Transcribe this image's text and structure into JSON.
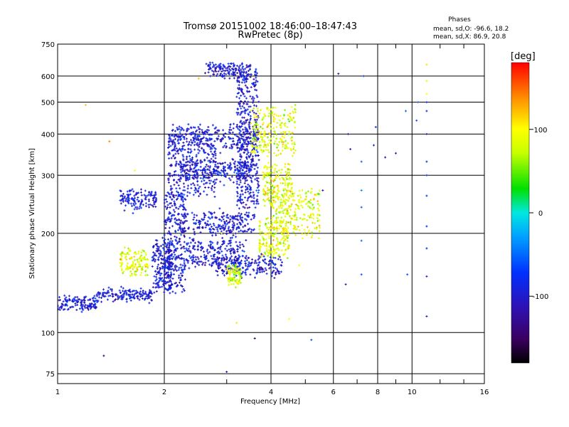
{
  "chart_data": {
    "type": "scatter",
    "title": "Tromsø 20151002 18:46:00–18:47:43",
    "subtitle": "RwPretec (8p)",
    "xlabel": "Frequency [MHz]",
    "ylabel": "Stationary phase Virtual Height [km]",
    "xscale": "log",
    "yscale": "log",
    "xlim": [
      1,
      16
    ],
    "ylim": [
      70,
      750
    ],
    "x_ticks": [
      1,
      2,
      4,
      6,
      8,
      10,
      16
    ],
    "x_minor_ticks": [
      3,
      5,
      7,
      9,
      12,
      14
    ],
    "y_ticks": [
      75,
      100,
      200,
      300,
      400,
      500,
      600,
      750
    ],
    "grid": true,
    "legend": {
      "heading": "Phases",
      "lines": [
        "mean, sd,O: -96.6, 18.2",
        "mean, sd,X:  86.9, 20.8"
      ],
      "position": "top-right"
    },
    "colorbar": {
      "label": "[deg]",
      "range": [
        -180,
        180
      ],
      "ticks": [
        100,
        0,
        -100
      ],
      "colormap": "rainbow (black-purple-blue-cyan-green-yellow-red)"
    },
    "series": [
      {
        "mode": "O",
        "phase_mean": -96.6,
        "phase_sd": 18.2,
        "traces": [
          {
            "f": [
              1.0,
              1.3
            ],
            "h": [
              118,
              128
            ],
            "s": 0.012
          },
          {
            "f": [
              1.3,
              1.85
            ],
            "h": [
              126,
              134
            ],
            "s": 0.012
          },
          {
            "f": [
              1.85,
              2.1
            ],
            "h": [
              134,
              190
            ],
            "s": 0.02
          },
          {
            "f": [
              2.0,
              2.3
            ],
            "h": [
              135,
              265
            ],
            "s": 0.02
          },
          {
            "f": [
              2.05,
              2.8
            ],
            "h": [
              260,
              400
            ],
            "s": 0.02
          },
          {
            "f": [
              2.05,
              3.7
            ],
            "h": [
              360,
              420
            ],
            "s": 0.018
          },
          {
            "f": [
              2.6,
              3.5
            ],
            "h": [
              600,
              650
            ],
            "s": 0.012
          },
          {
            "f": [
              3.2,
              3.7
            ],
            "h": [
              240,
              620
            ],
            "s": 0.02
          },
          {
            "f": [
              2.2,
              3.6
            ],
            "h": [
              290,
              330
            ],
            "s": 0.02
          },
          {
            "f": [
              2.2,
              3.6
            ],
            "h": [
              200,
              230
            ],
            "s": 0.02
          },
          {
            "f": [
              2.3,
              3.4
            ],
            "h": [
              160,
              190
            ],
            "s": 0.02
          },
          {
            "f": [
              2.8,
              4.3
            ],
            "h": [
              150,
              170
            ],
            "s": 0.015
          },
          {
            "f": [
              1.5,
              1.9
            ],
            "h": [
              240,
              270
            ],
            "s": 0.02
          }
        ]
      },
      {
        "mode": "X",
        "phase_mean": 86.9,
        "phase_sd": 20.8,
        "traces": [
          {
            "f": [
              3.7,
              4.5
            ],
            "h": [
              170,
              220
            ],
            "s": 0.015
          },
          {
            "f": [
              4.0,
              5.5
            ],
            "h": [
              200,
              270
            ],
            "s": 0.02
          },
          {
            "f": [
              3.8,
              4.6
            ],
            "h": [
              250,
              320
            ],
            "s": 0.02
          },
          {
            "f": [
              3.5,
              4.7
            ],
            "h": [
              350,
              480
            ],
            "s": 0.02
          },
          {
            "f": [
              3.0,
              3.3
            ],
            "h": [
              140,
              160
            ],
            "s": 0.01
          },
          {
            "f": [
              1.5,
              1.8
            ],
            "h": [
              150,
              175
            ],
            "s": 0.02
          }
        ]
      }
    ],
    "points": [
      [
        11.0,
        112,
        -90
      ],
      [
        11.0,
        148,
        -95
      ],
      [
        11.0,
        180,
        -80
      ],
      [
        11.0,
        210,
        -75
      ],
      [
        11.0,
        260,
        -70
      ],
      [
        11.0,
        300,
        -60
      ],
      [
        11.0,
        330,
        -85
      ],
      [
        11.0,
        400,
        -100
      ],
      [
        11.0,
        470,
        -90
      ],
      [
        11.0,
        500,
        -80
      ],
      [
        11.0,
        530,
        100
      ],
      [
        11.0,
        580,
        90
      ],
      [
        11.0,
        650,
        110
      ],
      [
        7.2,
        150,
        -60
      ],
      [
        7.2,
        190,
        -50
      ],
      [
        7.2,
        240,
        -55
      ],
      [
        7.2,
        270,
        -40
      ],
      [
        7.2,
        330,
        -55
      ],
      [
        7.3,
        600,
        -60
      ],
      [
        6.5,
        140,
        -110
      ],
      [
        6.2,
        610,
        -120
      ],
      [
        6.6,
        400,
        -110
      ],
      [
        6.7,
        360,
        -100
      ],
      [
        7.8,
        370,
        -90
      ],
      [
        7.9,
        420,
        -70
      ],
      [
        8.4,
        340,
        -110
      ],
      [
        9.0,
        350,
        -100
      ],
      [
        9.6,
        470,
        -50
      ],
      [
        9.7,
        150,
        -60
      ],
      [
        10.3,
        440,
        -60
      ],
      [
        10.4,
        500,
        -50
      ],
      [
        5.2,
        95,
        -60
      ],
      [
        3.0,
        76,
        -120
      ],
      [
        3.6,
        96,
        -150
      ],
      [
        1.35,
        85,
        -150
      ],
      [
        1.4,
        380,
        140
      ],
      [
        1.2,
        490,
        120
      ],
      [
        1.65,
        310,
        100
      ],
      [
        4.5,
        110,
        100
      ],
      [
        3.2,
        107,
        110
      ],
      [
        2.9,
        200,
        95
      ],
      [
        4.8,
        160,
        100
      ],
      [
        2.5,
        590,
        120
      ],
      [
        5.6,
        270,
        -110
      ]
    ]
  }
}
